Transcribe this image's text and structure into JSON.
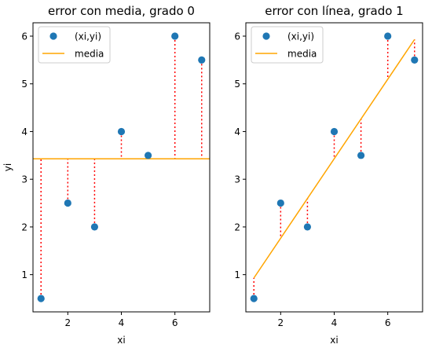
{
  "chart_data": [
    {
      "type": "scatter",
      "title": "error con media, grado 0",
      "xlabel": "xi",
      "ylabel": "yi",
      "xlim": [
        0.7,
        7.3
      ],
      "ylim": [
        0.22,
        6.28
      ],
      "xticks": [
        2,
        4,
        6
      ],
      "yticks": [
        1,
        2,
        3,
        4,
        5,
        6
      ],
      "legend_position": "top-left",
      "points": {
        "name": "(xi,yi)",
        "color": "#1f77b4",
        "x": [
          1,
          2,
          3,
          4,
          5,
          6,
          7
        ],
        "y": [
          0.5,
          2.5,
          2.0,
          4.0,
          3.5,
          6.0,
          5.5
        ]
      },
      "fit": {
        "name": "media",
        "color": "#ffa500",
        "x": [
          0.7,
          7.3
        ],
        "y": [
          3.43,
          3.43
        ]
      },
      "error_color": "#ff0000"
    },
    {
      "type": "scatter",
      "title": "error con línea, grado 1",
      "xlabel": "xi",
      "ylabel": "",
      "xlim": [
        0.7,
        7.3
      ],
      "ylim": [
        0.22,
        6.28
      ],
      "xticks": [
        2,
        4,
        6
      ],
      "yticks": [
        1,
        2,
        3,
        4,
        5,
        6
      ],
      "legend_position": "top-left",
      "points": {
        "name": "(xi,yi)",
        "color": "#1f77b4",
        "x": [
          1,
          2,
          3,
          4,
          5,
          6,
          7
        ],
        "y": [
          0.5,
          2.5,
          2.0,
          4.0,
          3.5,
          6.0,
          5.5
        ]
      },
      "fit": {
        "name": "media",
        "color": "#ffa500",
        "x": [
          1,
          7
        ],
        "y": [
          0.93,
          5.93
        ]
      },
      "error_color": "#ff0000"
    }
  ]
}
